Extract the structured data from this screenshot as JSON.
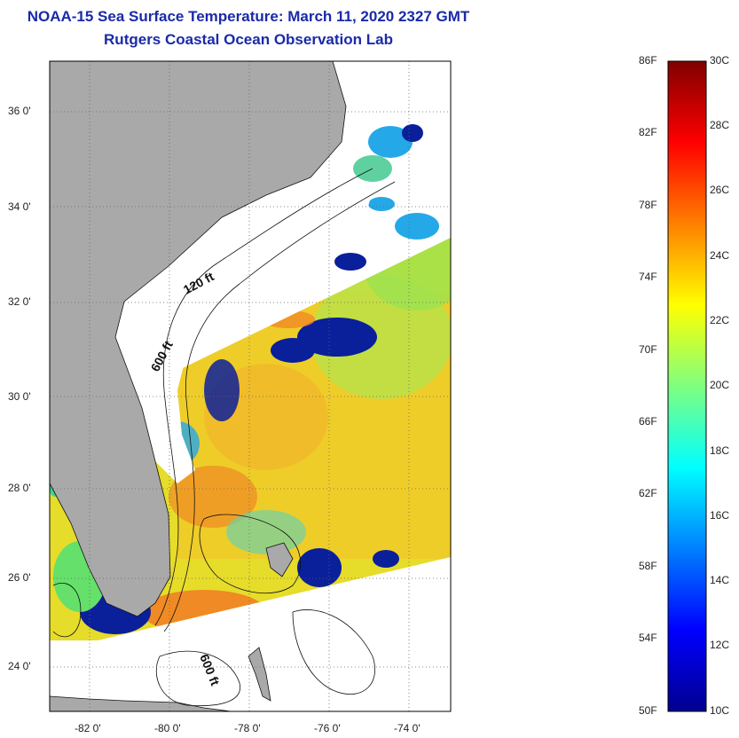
{
  "header": {
    "title": "NOAA-15 Sea Surface Temperature:  March 11, 2020 2327 GMT",
    "subtitle": "Rutgers Coastal Ocean Observation Lab"
  },
  "map": {
    "lat_labels": [
      "36 0'",
      "34 0'",
      "32 0'",
      "30 0'",
      "28 0'",
      "26 0'",
      "24 0'"
    ],
    "lon_labels": [
      "-82 0'",
      "-80 0'",
      "-78 0'",
      "-76 0'",
      "-74 0'"
    ],
    "contours": [
      "120 ft",
      "600 ft",
      "600 ft"
    ],
    "colors": {
      "land": "#a9a9a9",
      "cloud_nodata": "#ffffff",
      "warm_water": "#f5d21e",
      "cold_water": "#0a1f9a"
    }
  },
  "colorbar": {
    "fahrenheit": [
      "86F",
      "82F",
      "78F",
      "74F",
      "70F",
      "66F",
      "62F",
      "58F",
      "54F",
      "50F"
    ],
    "celsius": [
      "30C",
      "28C",
      "26C",
      "24C",
      "22C",
      "20C",
      "18C",
      "16C",
      "14C",
      "12C",
      "10C"
    ],
    "range_c": [
      10,
      30
    ],
    "colormap": "jet"
  }
}
